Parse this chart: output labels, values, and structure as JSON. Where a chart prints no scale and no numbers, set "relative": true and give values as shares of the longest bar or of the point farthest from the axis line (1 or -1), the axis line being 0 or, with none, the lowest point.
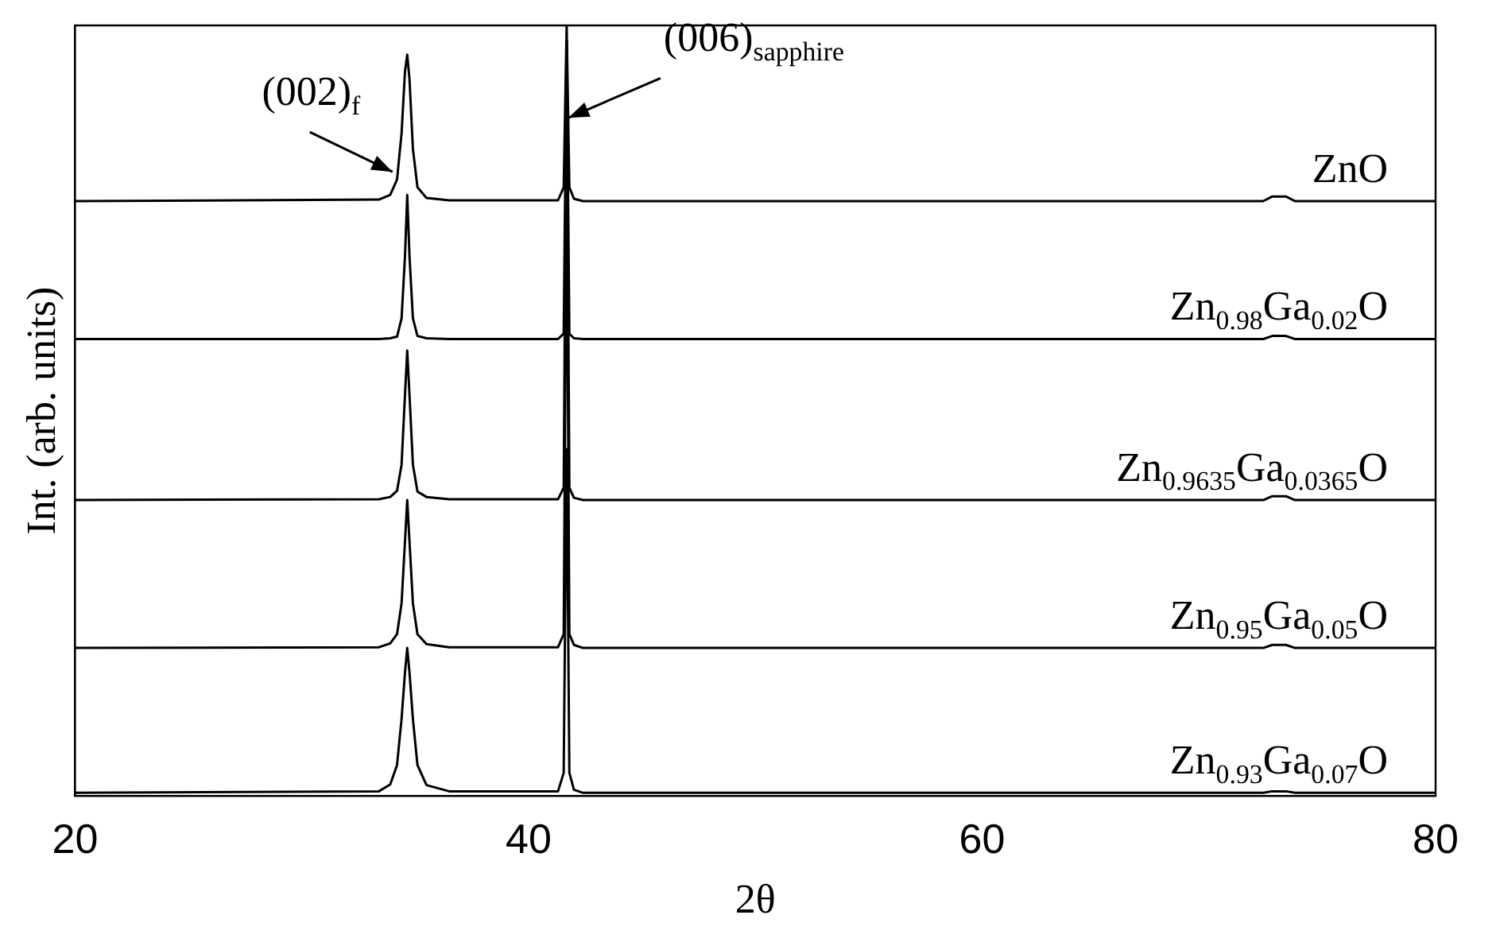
{
  "chart_data": {
    "type": "line",
    "relative": true,
    "xlabel": "2θ",
    "ylabel": "Int. (arb. units)",
    "xlim": [
      20,
      80
    ],
    "xticks": [
      20,
      40,
      60,
      80
    ],
    "marker": "none",
    "legend": false,
    "grid": false,
    "x": [
      20,
      33.4,
      33.9,
      34.2,
      34.4,
      34.55,
      34.65,
      34.75,
      34.9,
      35.1,
      35.5,
      36.5,
      41.3,
      41.55,
      41.68,
      41.8,
      42.0,
      42.4,
      72.4,
      72.8,
      73.4,
      73.8,
      80
    ],
    "series": [
      {
        "name": "ZnO",
        "color": "#000000",
        "values": [
          0.772,
          0.774,
          0.78,
          0.8,
          0.86,
          0.94,
          0.962,
          0.93,
          0.84,
          0.79,
          0.776,
          0.773,
          0.773,
          0.79,
          1.0,
          0.79,
          0.775,
          0.772,
          0.772,
          0.778,
          0.778,
          0.772,
          0.772
        ]
      },
      {
        "name": "Zn$_{0.98}$Ga$_{0.02}$O",
        "color": "#000000",
        "values": [
          0.593,
          0.593,
          0.594,
          0.596,
          0.62,
          0.7,
          0.78,
          0.7,
          0.62,
          0.597,
          0.594,
          0.593,
          0.593,
          0.6,
          0.98,
          0.6,
          0.594,
          0.593,
          0.593,
          0.597,
          0.597,
          0.593,
          0.593
        ]
      },
      {
        "name": "Zn$_{0.9635}$Ga$_{0.0365}$O",
        "color": "#000000",
        "values": [
          0.384,
          0.385,
          0.388,
          0.396,
          0.43,
          0.52,
          0.578,
          0.52,
          0.43,
          0.395,
          0.388,
          0.385,
          0.385,
          0.4,
          0.98,
          0.4,
          0.387,
          0.384,
          0.384,
          0.389,
          0.389,
          0.384,
          0.384
        ]
      },
      {
        "name": "Zn$_{0.95}$Ga$_{0.05}$O",
        "color": "#000000",
        "values": [
          0.192,
          0.193,
          0.198,
          0.21,
          0.25,
          0.33,
          0.384,
          0.33,
          0.25,
          0.21,
          0.197,
          0.193,
          0.193,
          0.21,
          0.8,
          0.21,
          0.196,
          0.192,
          0.192,
          0.196,
          0.196,
          0.192,
          0.192
        ]
      },
      {
        "name": "Zn$_{0.93}$Ga$_{0.07}$O",
        "color": "#000000",
        "values": [
          0.004,
          0.006,
          0.015,
          0.04,
          0.1,
          0.16,
          0.192,
          0.16,
          0.1,
          0.04,
          0.014,
          0.006,
          0.006,
          0.03,
          0.45,
          0.03,
          0.008,
          0.004,
          0.004,
          0.006,
          0.006,
          0.004,
          0.004
        ]
      }
    ],
    "annotations": [
      {
        "text": "(002)$_{f}$",
        "x": 34.0,
        "y": 0.81
      },
      {
        "text": "(006)$_{sapphire}$",
        "x": 41.75,
        "y": 0.88
      }
    ]
  }
}
